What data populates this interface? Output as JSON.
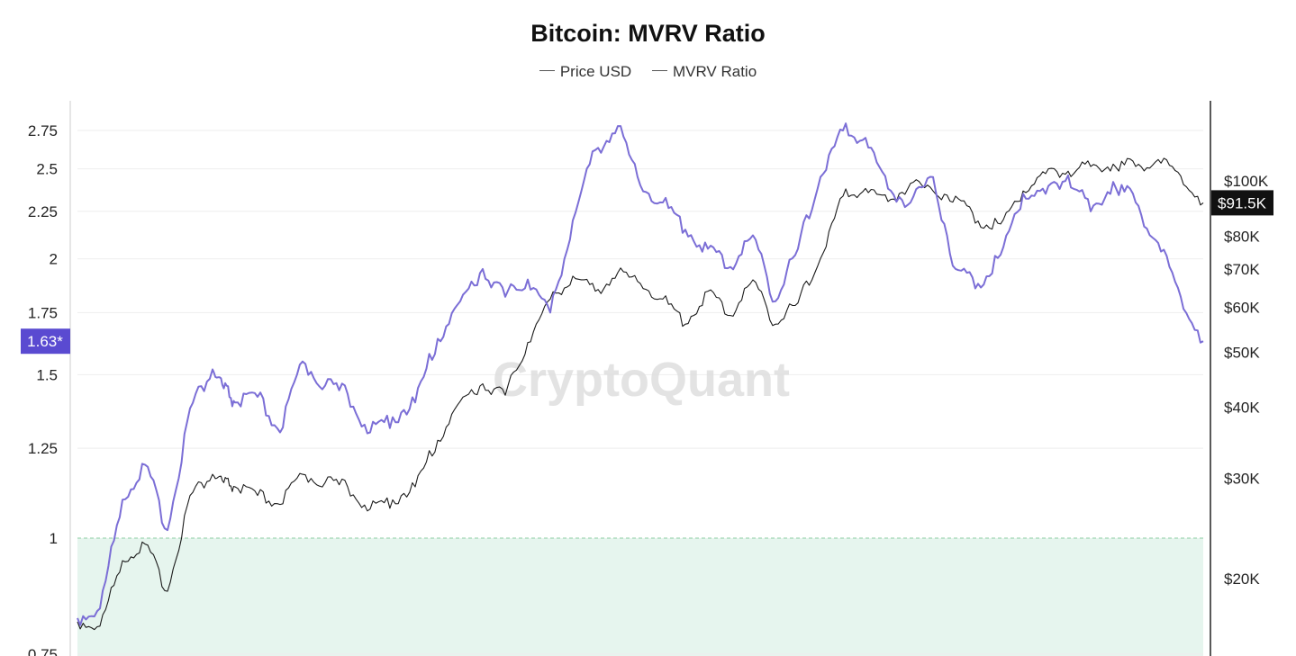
{
  "title": "Bitcoin: MVRV Ratio",
  "legend": [
    {
      "name": "Price USD",
      "color": "#555555"
    },
    {
      "name": "MVRV Ratio",
      "color": "#555555"
    }
  ],
  "watermark": "CryptoQuant",
  "colors": {
    "mvrv_line": "#7b6ed6",
    "price_line": "#1a1a1a",
    "below_one_zone": "#e6f5ee",
    "threshold_line": "#8fcfa4",
    "mvrv_badge": "#5a4ad1",
    "price_badge": "#111111",
    "grid": "#eeeeee"
  },
  "chart_data": {
    "type": "line",
    "title": "Bitcoin: MVRV Ratio",
    "x": [
      0,
      2,
      4,
      6,
      8,
      10,
      12,
      13,
      14,
      16,
      18,
      20,
      22,
      24,
      26,
      28,
      30,
      32,
      34,
      36,
      38,
      40,
      42,
      44,
      46,
      48,
      50,
      52,
      54,
      56,
      58,
      60,
      62,
      64,
      66,
      68,
      70,
      72,
      74,
      76,
      78,
      80,
      82,
      84,
      86,
      88,
      90,
      92,
      94,
      96,
      98,
      100
    ],
    "series": [
      {
        "name": "MVRV Ratio",
        "axis": "left",
        "values": [
          0.82,
          0.84,
          1.1,
          1.2,
          1.02,
          1.38,
          1.52,
          1.45,
          1.4,
          1.42,
          1.3,
          1.55,
          1.46,
          1.43,
          1.3,
          1.35,
          1.4,
          1.64,
          1.8,
          1.95,
          1.82,
          1.9,
          1.75,
          2.2,
          2.62,
          2.78,
          2.4,
          2.3,
          2.15,
          2.05,
          1.96,
          2.12,
          1.8,
          2.05,
          2.45,
          2.75,
          2.7,
          2.38,
          2.3,
          2.45,
          1.95,
          1.88,
          2.02,
          2.35,
          2.35,
          2.46,
          2.25,
          2.42,
          2.3,
          2.08,
          1.82,
          1.63
        ]
      },
      {
        "name": "Price USD",
        "axis": "right",
        "values": [
          16800,
          16500,
          21500,
          23000,
          19000,
          28000,
          30500,
          29500,
          29000,
          28000,
          27000,
          30500,
          29500,
          29000,
          26500,
          27500,
          29000,
          35000,
          41000,
          44000,
          42000,
          52000,
          62000,
          68000,
          64000,
          69000,
          66000,
          62000,
          56000,
          64000,
          58000,
          67000,
          56000,
          61000,
          73000,
          94000,
          97000,
          92000,
          99000,
          96000,
          94000,
          85000,
          84000,
          96000,
          103000,
          104000,
          106000,
          107000,
          106000,
          109000,
          102000,
          91500
        ]
      }
    ],
    "y_left": {
      "scale": "log",
      "ticks": [
        0.75,
        1,
        1.25,
        1.5,
        1.75,
        2,
        2.25,
        2.5,
        2.75
      ],
      "tick_labels": [
        "0.75",
        "1",
        "1.25",
        "1.5",
        "1.75",
        "2",
        "2.25",
        "2.5",
        "2.75"
      ]
    },
    "y_right": {
      "scale": "log",
      "ticks": [
        20000,
        30000,
        40000,
        50000,
        60000,
        70000,
        80000,
        100000
      ],
      "tick_labels": [
        "$20K",
        "$30K",
        "$40K",
        "$50K",
        "$60K",
        "$70K",
        "$80K",
        "$100K"
      ]
    },
    "current_values": {
      "mvrv_label": "1.63*",
      "mvrv": 1.63,
      "price_label": "$91.5K",
      "price": 91500
    },
    "threshold": 1,
    "grid": true,
    "legend_position": "top-center"
  }
}
